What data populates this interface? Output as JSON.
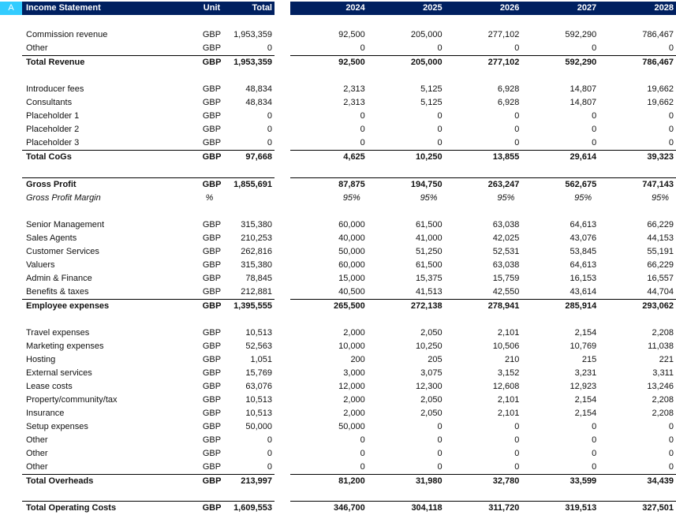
{
  "header": {
    "col_letter": "A",
    "title": "Income Statement",
    "unit": "Unit",
    "total": "Total",
    "years": [
      "2024",
      "2025",
      "2026",
      "2027",
      "2028"
    ]
  },
  "rows": [
    {
      "type": "blank"
    },
    {
      "label": "Commission revenue",
      "unit": "GBP",
      "total": "1,953,359",
      "values": [
        "92,500",
        "205,000",
        "277,102",
        "592,290",
        "786,467"
      ]
    },
    {
      "label": "Other",
      "unit": "GBP",
      "total": "0",
      "values": [
        "0",
        "0",
        "0",
        "0",
        "0"
      ]
    },
    {
      "type": "total",
      "label": "Total Revenue",
      "unit": "GBP",
      "total": "1,953,359",
      "values": [
        "92,500",
        "205,000",
        "277,102",
        "592,290",
        "786,467"
      ]
    },
    {
      "type": "blank"
    },
    {
      "label": "Introducer fees",
      "unit": "GBP",
      "total": "48,834",
      "values": [
        "2,313",
        "5,125",
        "6,928",
        "14,807",
        "19,662"
      ]
    },
    {
      "label": "Consultants",
      "unit": "GBP",
      "total": "48,834",
      "values": [
        "2,313",
        "5,125",
        "6,928",
        "14,807",
        "19,662"
      ]
    },
    {
      "label": "Placeholder 1",
      "unit": "GBP",
      "total": "0",
      "values": [
        "0",
        "0",
        "0",
        "0",
        "0"
      ]
    },
    {
      "label": "Placeholder 2",
      "unit": "GBP",
      "total": "0",
      "values": [
        "0",
        "0",
        "0",
        "0",
        "0"
      ]
    },
    {
      "label": "Placeholder 3",
      "unit": "GBP",
      "total": "0",
      "values": [
        "0",
        "0",
        "0",
        "0",
        "0"
      ]
    },
    {
      "type": "total",
      "label": "Total CoGs",
      "unit": "GBP",
      "total": "97,668",
      "values": [
        "4,625",
        "10,250",
        "13,855",
        "29,614",
        "39,323"
      ]
    },
    {
      "type": "blank"
    },
    {
      "type": "total",
      "label": "Gross Profit",
      "unit": "GBP",
      "total": "1,855,691",
      "values": [
        "87,875",
        "194,750",
        "263,247",
        "562,675",
        "747,143"
      ]
    },
    {
      "type": "italic",
      "label": "Gross Profit Margin",
      "unit": "%",
      "total": "",
      "values": [
        "95%",
        "95%",
        "95%",
        "95%",
        "95%"
      ]
    },
    {
      "type": "blank"
    },
    {
      "label": "Senior Management",
      "unit": "GBP",
      "total": "315,380",
      "values": [
        "60,000",
        "61,500",
        "63,038",
        "64,613",
        "66,229"
      ]
    },
    {
      "label": "Sales Agents",
      "unit": "GBP",
      "total": "210,253",
      "values": [
        "40,000",
        "41,000",
        "42,025",
        "43,076",
        "44,153"
      ]
    },
    {
      "label": "Customer Services",
      "unit": "GBP",
      "total": "262,816",
      "values": [
        "50,000",
        "51,250",
        "52,531",
        "53,845",
        "55,191"
      ]
    },
    {
      "label": "Valuers",
      "unit": "GBP",
      "total": "315,380",
      "values": [
        "60,000",
        "61,500",
        "63,038",
        "64,613",
        "66,229"
      ]
    },
    {
      "label": "Admin & Finance",
      "unit": "GBP",
      "total": "78,845",
      "values": [
        "15,000",
        "15,375",
        "15,759",
        "16,153",
        "16,557"
      ]
    },
    {
      "label": "Benefits & taxes",
      "unit": "GBP",
      "total": "212,881",
      "values": [
        "40,500",
        "41,513",
        "42,550",
        "43,614",
        "44,704"
      ]
    },
    {
      "type": "total",
      "label": "Employee expenses",
      "unit": "GBP",
      "total": "1,395,555",
      "values": [
        "265,500",
        "272,138",
        "278,941",
        "285,914",
        "293,062"
      ]
    },
    {
      "type": "blank"
    },
    {
      "label": "Travel expenses",
      "unit": "GBP",
      "total": "10,513",
      "values": [
        "2,000",
        "2,050",
        "2,101",
        "2,154",
        "2,208"
      ]
    },
    {
      "label": "Marketing expenses",
      "unit": "GBP",
      "total": "52,563",
      "values": [
        "10,000",
        "10,250",
        "10,506",
        "10,769",
        "11,038"
      ]
    },
    {
      "label": "Hosting",
      "unit": "GBP",
      "total": "1,051",
      "values": [
        "200",
        "205",
        "210",
        "215",
        "221"
      ]
    },
    {
      "label": "External services",
      "unit": "GBP",
      "total": "15,769",
      "values": [
        "3,000",
        "3,075",
        "3,152",
        "3,231",
        "3,311"
      ]
    },
    {
      "label": "Lease costs",
      "unit": "GBP",
      "total": "63,076",
      "values": [
        "12,000",
        "12,300",
        "12,608",
        "12,923",
        "13,246"
      ]
    },
    {
      "label": "Property/community/tax",
      "unit": "GBP",
      "total": "10,513",
      "values": [
        "2,000",
        "2,050",
        "2,101",
        "2,154",
        "2,208"
      ]
    },
    {
      "label": "Insurance",
      "unit": "GBP",
      "total": "10,513",
      "values": [
        "2,000",
        "2,050",
        "2,101",
        "2,154",
        "2,208"
      ]
    },
    {
      "label": "Setup expenses",
      "unit": "GBP",
      "total": "50,000",
      "values": [
        "50,000",
        "0",
        "0",
        "0",
        "0"
      ]
    },
    {
      "label": "Other",
      "unit": "GBP",
      "total": "0",
      "values": [
        "0",
        "0",
        "0",
        "0",
        "0"
      ]
    },
    {
      "label": "Other",
      "unit": "GBP",
      "total": "0",
      "values": [
        "0",
        "0",
        "0",
        "0",
        "0"
      ]
    },
    {
      "label": "Other",
      "unit": "GBP",
      "total": "0",
      "values": [
        "0",
        "0",
        "0",
        "0",
        "0"
      ]
    },
    {
      "type": "total",
      "label": "Total Overheads",
      "unit": "GBP",
      "total": "213,997",
      "values": [
        "81,200",
        "31,980",
        "32,780",
        "33,599",
        "34,439"
      ]
    },
    {
      "type": "blank"
    },
    {
      "type": "total",
      "label": "Total Operating Costs",
      "unit": "GBP",
      "total": "1,609,553",
      "values": [
        "346,700",
        "304,118",
        "311,720",
        "319,513",
        "327,501"
      ]
    }
  ]
}
